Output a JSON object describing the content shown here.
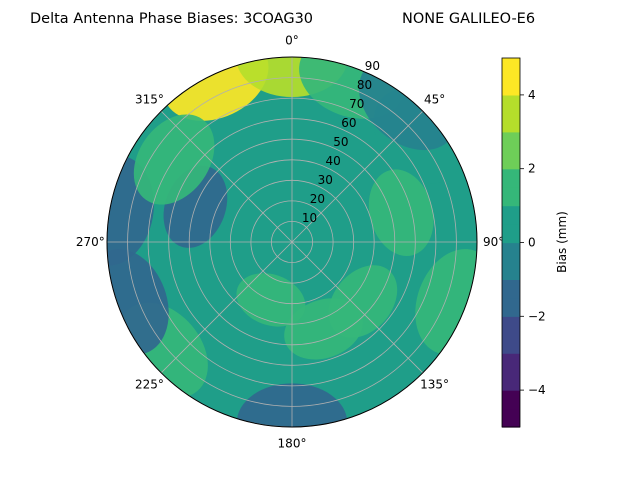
{
  "chart_data": {
    "type": "polar-contour",
    "title_left": "Delta Antenna Phase Biases: 3COAG30",
    "title_right": "NONE GALILEO-E6",
    "angular_axis": {
      "zero_location": "N",
      "direction": "clockwise",
      "tick_labels": [
        "0°",
        "45°",
        "90°",
        "135°",
        "180°",
        "225°",
        "270°",
        "315°"
      ]
    },
    "radial_axis": {
      "range": [
        0,
        90
      ],
      "tick_labels": [
        "10",
        "20",
        "30",
        "40",
        "50",
        "60",
        "70",
        "80",
        "90"
      ]
    },
    "grid": true,
    "colorbar": {
      "label": "Bias (mm)",
      "range": [
        -5,
        5
      ],
      "tick_labels": [
        "−4",
        "−2",
        "0",
        "2",
        "4"
      ],
      "levels": [
        -5,
        -4.5,
        -4,
        -3.5,
        -3,
        -2.5,
        -2,
        -1.5,
        -1,
        -0.5,
        0,
        0.5,
        1,
        1.5,
        2,
        2.5,
        3,
        3.5,
        4,
        4.5,
        5
      ],
      "colormap": "viridis",
      "colors": [
        "#440154",
        "#482878",
        "#3e4a89",
        "#31688e",
        "#26828e",
        "#1f9e89",
        "#35b779",
        "#6ece58",
        "#b5de2b",
        "#fde725"
      ]
    },
    "background_level_mm": 0.5,
    "field_regions": [
      {
        "az_deg": 335,
        "zenith_deg": 88,
        "bias_mm": 4.5
      },
      {
        "az_deg": 0,
        "zenith_deg": 90,
        "bias_mm": 3.0
      },
      {
        "az_deg": 20,
        "zenith_deg": 85,
        "bias_mm": 1.5
      },
      {
        "az_deg": 50,
        "zenith_deg": 80,
        "bias_mm": 0.8
      },
      {
        "az_deg": 75,
        "zenith_deg": 55,
        "bias_mm": 1.0
      },
      {
        "az_deg": 110,
        "zenith_deg": 85,
        "bias_mm": 1.5
      },
      {
        "az_deg": 130,
        "zenith_deg": 45,
        "bias_mm": 1.0
      },
      {
        "az_deg": 160,
        "zenith_deg": 45,
        "bias_mm": 1.0
      },
      {
        "az_deg": 200,
        "zenith_deg": 30,
        "bias_mm": 1.2
      },
      {
        "az_deg": 230,
        "zenith_deg": 82,
        "bias_mm": 1.5
      },
      {
        "az_deg": 250,
        "zenith_deg": 85,
        "bias_mm": -1.5
      },
      {
        "az_deg": 280,
        "zenith_deg": 88,
        "bias_mm": -2.0
      },
      {
        "az_deg": 290,
        "zenith_deg": 50,
        "bias_mm": -1.2
      },
      {
        "az_deg": 305,
        "zenith_deg": 70,
        "bias_mm": 1.0
      },
      {
        "az_deg": 180,
        "zenith_deg": 88,
        "bias_mm": -2.0
      },
      {
        "az_deg": 40,
        "zenith_deg": 88,
        "bias_mm": -0.5
      }
    ]
  }
}
